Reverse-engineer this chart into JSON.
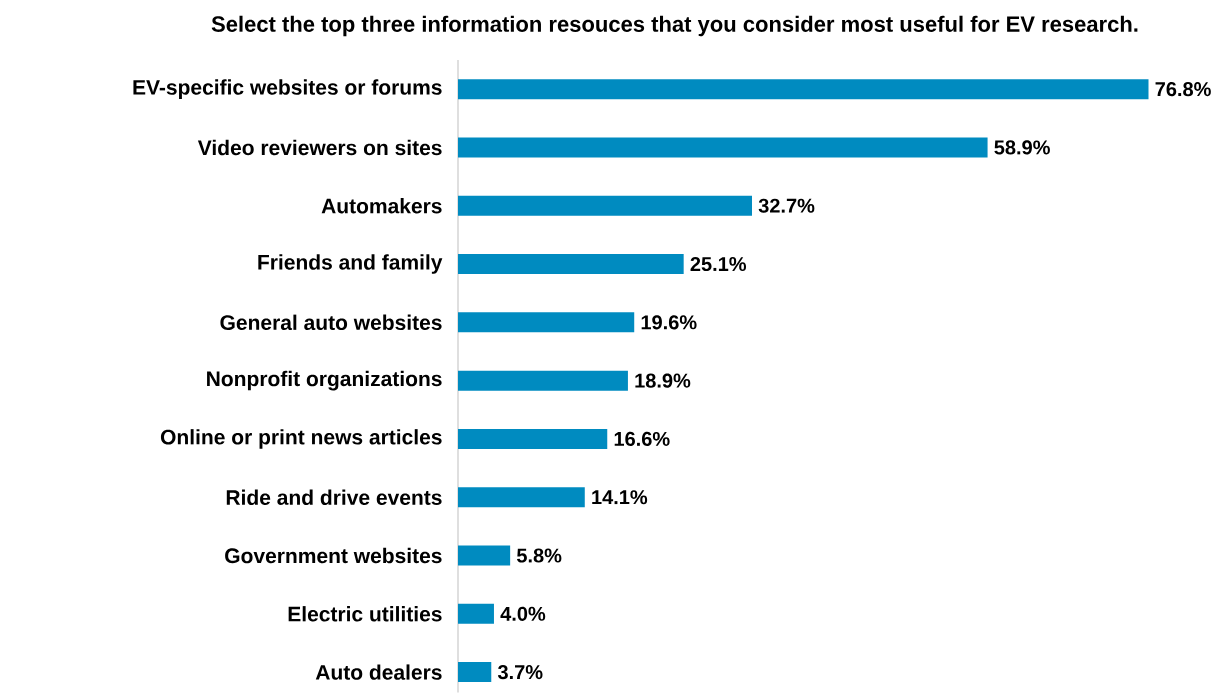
{
  "chart_data": {
    "type": "bar",
    "orientation": "horizontal",
    "title": "Select the top three information resouces that you consider most useful for EV research.",
    "categories": [
      "EV-specific websites or forums",
      "Video reviewers on sites",
      "Automakers",
      "Friends and family",
      "General auto websites",
      "Nonprofit organizations",
      "Online or print news articles",
      "Ride and drive events",
      "Government websites",
      "Electric utilities",
      "Auto dealers"
    ],
    "values": [
      76.8,
      58.9,
      32.7,
      25.1,
      19.6,
      18.9,
      16.6,
      14.1,
      5.8,
      4.0,
      3.7
    ],
    "value_labels": [
      "76.8%",
      "58.9%",
      "32.7%",
      "25.1%",
      "19.6%",
      "18.9%",
      "16.6%",
      "14.1%",
      "5.8%",
      "4.0%",
      "3.7%"
    ],
    "color": "#008bc0",
    "tick_labels": "y"
  }
}
